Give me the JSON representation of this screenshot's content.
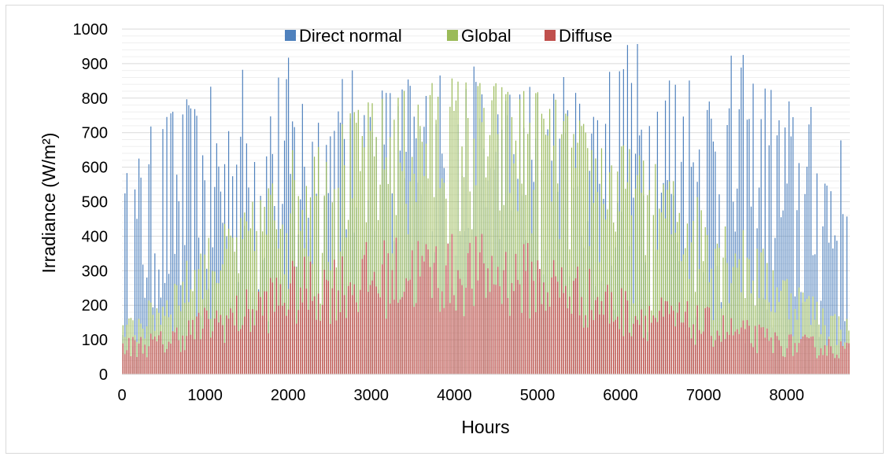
{
  "chart_data": {
    "type": "bar",
    "title": "",
    "xlabel": "Hours",
    "ylabel": "Irradiance (W/m²)",
    "xlim": [
      0,
      8760
    ],
    "ylim": [
      0,
      1000
    ],
    "x_ticks": [
      "0",
      "1000",
      "2000",
      "3000",
      "4000",
      "5000",
      "6000",
      "7000",
      "8000"
    ],
    "y_ticks": [
      "0",
      "100",
      "200",
      "300",
      "400",
      "500",
      "600",
      "700",
      "800",
      "900",
      "1000"
    ],
    "grid": true,
    "legend_position": "top",
    "series": [
      {
        "name": "Direct normal",
        "color": "#4f81bd",
        "x": [
          0,
          500,
          1000,
          1500,
          2000,
          2500,
          3000,
          3500,
          4000,
          4500,
          5000,
          5500,
          6000,
          6500,
          7000,
          7500,
          8000,
          8500,
          8760
        ],
        "values": [
          580,
          790,
          820,
          930,
          930,
          910,
          880,
          900,
          910,
          880,
          880,
          880,
          990,
          980,
          940,
          930,
          830,
          760,
          660
        ]
      },
      {
        "name": "Global",
        "color": "#9bbb59",
        "x": [
          0,
          500,
          1000,
          1500,
          2000,
          2500,
          3000,
          3500,
          4000,
          4500,
          5000,
          5500,
          6000,
          6500,
          7000,
          7500,
          8000,
          8500,
          8760
        ],
        "values": [
          150,
          250,
          400,
          480,
          650,
          730,
          800,
          840,
          880,
          860,
          840,
          750,
          680,
          600,
          520,
          420,
          300,
          200,
          160
        ]
      },
      {
        "name": "Diffuse",
        "color": "#c0504d",
        "x": [
          0,
          500,
          1000,
          1500,
          2000,
          2500,
          3000,
          3500,
          4000,
          4500,
          5000,
          5500,
          6000,
          6500,
          7000,
          7500,
          8000,
          8500,
          8760
        ],
        "values": [
          110,
          130,
          200,
          250,
          330,
          360,
          390,
          420,
          410,
          410,
          380,
          330,
          260,
          230,
          200,
          160,
          120,
          110,
          100
        ]
      }
    ]
  }
}
